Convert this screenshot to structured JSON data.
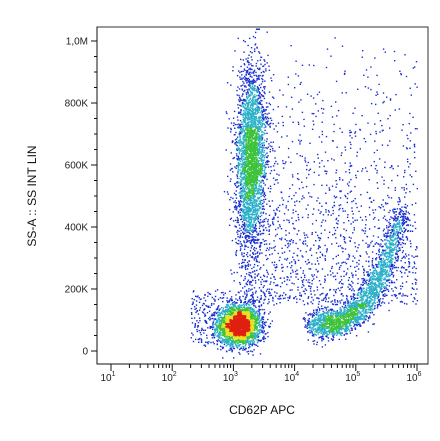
{
  "chart_data": {
    "type": "scatter",
    "plot_style": "flow-cytometry-density-dot-plot",
    "xlabel": "CD62P APC",
    "ylabel": "SS-A :: SS INT LIN",
    "x_scale": "log",
    "xlim": [
      10,
      1000000
    ],
    "x_ticks": [
      {
        "base": "10",
        "exp": "1",
        "value": 10
      },
      {
        "base": "10",
        "exp": "2",
        "value": 100
      },
      {
        "base": "10",
        "exp": "3",
        "value": 1000
      },
      {
        "base": "10",
        "exp": "4",
        "value": 10000
      },
      {
        "base": "10",
        "exp": "5",
        "value": 100000
      },
      {
        "base": "10",
        "exp": "6",
        "value": 1000000
      }
    ],
    "y_scale": "linear",
    "ylim": [
      0,
      1050000
    ],
    "y_ticks": [
      {
        "label": "0",
        "value": 0
      },
      {
        "label": "200K",
        "value": 200000
      },
      {
        "label": "400K",
        "value": 400000
      },
      {
        "label": "600K",
        "value": 600000
      },
      {
        "label": "800K",
        "value": 800000
      },
      {
        "label": "1,0M",
        "value": 1000000
      }
    ],
    "populations": [
      {
        "center_x": 1200,
        "center_y": 85000,
        "density": "highest",
        "shape": "compact blob"
      },
      {
        "center_x": 1900,
        "center_y": 620000,
        "density": "high",
        "shape": "vertical elongated"
      },
      {
        "center_x": 60000,
        "center_y": 110000,
        "density": "high",
        "shape": "diagonal arc rising to the right"
      }
    ],
    "colors": {
      "sparse": "#1a2fd0",
      "low": "#2ab0c8",
      "mid": "#3ec23a",
      "high": "#e8e020",
      "peak": "#e02010"
    }
  }
}
